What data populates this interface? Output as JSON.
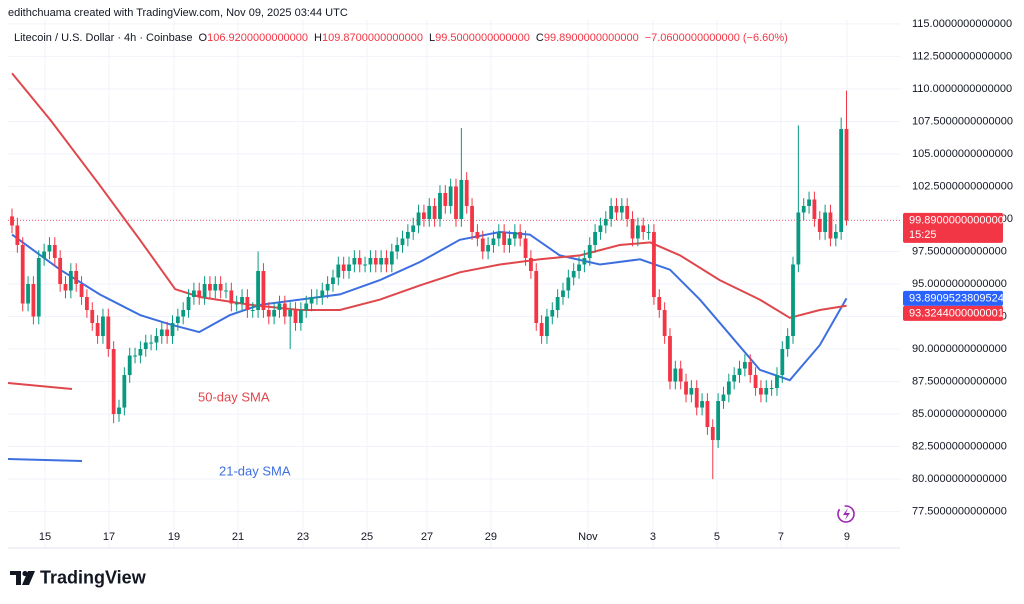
{
  "chart_data": {
    "type": "candlestick",
    "credit": "edithchuama created with TradingView.com, Nov 09, 2025 03:44 UTC",
    "symbol": "Litecoin / U.S. Dollar · 4h · Coinbase",
    "ohlc_header": [
      {
        "key": "O",
        "value": "106.9200000000000"
      },
      {
        "key": "H",
        "value": "109.8700000000000"
      },
      {
        "key": "L",
        "value": "99.5000000000000"
      },
      {
        "key": "C",
        "value": "99.8900000000000"
      },
      {
        "key": "",
        "value": "−7.0600000000000 (−6.60%)"
      }
    ],
    "brand": "TradingView",
    "up_color": "#089981",
    "down_color": "#f23645",
    "grid": true,
    "xlim": [
      -0.75,
      166
    ],
    "ylim": [
      74.7,
      115.3
    ],
    "xticks": [
      {
        "value": 6.17,
        "label": "15"
      },
      {
        "value": 18.13,
        "label": "17"
      },
      {
        "value": 30.28,
        "label": "19"
      },
      {
        "value": 42.24,
        "label": "21"
      },
      {
        "value": 54.39,
        "label": "23"
      },
      {
        "value": 66.36,
        "label": "25"
      },
      {
        "value": 77.57,
        "label": "27"
      },
      {
        "value": 89.53,
        "label": "29"
      },
      {
        "value": 107.66,
        "label": "Nov"
      },
      {
        "value": 119.81,
        "label": "3"
      },
      {
        "value": 131.78,
        "label": "5"
      },
      {
        "value": 143.74,
        "label": "7"
      },
      {
        "value": 156.07,
        "label": "9"
      }
    ],
    "yticks": [
      {
        "value": 77.5,
        "label": "77.5000000000000"
      },
      {
        "value": 80,
        "label": "80.0000000000000"
      },
      {
        "value": 82.5,
        "label": "82.5000000000000"
      },
      {
        "value": 85,
        "label": "85.0000000000000"
      },
      {
        "value": 87.5,
        "label": "87.5000000000000"
      },
      {
        "value": 90,
        "label": "90.0000000000000"
      },
      {
        "value": 92.5,
        "label": "92.5000000000000"
      },
      {
        "value": 95,
        "label": "95.0000000000000"
      },
      {
        "value": 97.5,
        "label": "97.5000000000000"
      },
      {
        "value": 100,
        "label": "100.0000000000000"
      },
      {
        "value": 102.5,
        "label": "102.5000000000000"
      },
      {
        "value": 105,
        "label": "105.0000000000000"
      },
      {
        "value": 107.5,
        "label": "107.5000000000000"
      },
      {
        "value": 110,
        "label": "110.0000000000000"
      },
      {
        "value": 112.5,
        "label": "112.5000000000000"
      },
      {
        "value": 115,
        "label": "115.0000000000000"
      }
    ],
    "open": [
      100.2,
      99.5,
      98,
      93.5,
      95,
      92.5,
      97,
      97.5,
      98,
      97,
      95,
      94.5,
      96,
      95,
      94,
      93,
      92,
      91,
      92.5,
      90,
      85,
      85.5,
      88,
      89.5,
      89.5,
      90,
      90.5,
      90.5,
      91,
      91.5,
      91,
      92,
      92.5,
      93,
      94,
      94.5,
      94,
      95,
      94.5,
      95,
      94.5,
      94.5,
      93.5,
      93.5,
      94,
      93,
      93,
      96,
      93,
      92.5,
      93,
      93.5,
      92.5,
      93,
      92,
      93,
      93.5,
      94,
      94,
      94.5,
      95,
      95.5,
      96.5,
      96,
      96.5,
      97,
      96.5,
      96.5,
      97,
      96.5,
      97,
      96.5,
      97.5,
      98,
      98.5,
      99,
      99.5,
      100.5,
      100,
      101,
      100,
      102,
      101,
      102.5,
      100,
      103,
      101,
      99,
      98.5,
      97.5,
      98,
      98.5,
      99,
      98,
      98.5,
      99,
      98.5,
      97,
      96,
      92,
      91,
      92.5,
      93,
      94,
      94.5,
      95.5,
      96,
      96.5,
      97,
      98,
      99,
      99.5,
      100,
      101,
      100.5,
      101,
      100,
      98.5,
      99.5,
      99,
      99,
      94,
      93,
      91,
      87.5,
      88.5,
      87.5,
      86.5,
      87,
      85.5,
      86,
      84,
      83,
      86,
      86.5,
      87.5,
      88,
      88.5,
      89,
      88,
      87,
      86.5,
      87,
      87,
      88,
      90,
      91,
      96.5,
      100.5,
      101,
      101.5,
      100,
      99,
      100.5,
      98.5,
      99,
      106.92
    ],
    "high": [
      100.8,
      100.1,
      98.6,
      95.6,
      95.6,
      97.6,
      98.1,
      98.6,
      98.6,
      97.6,
      95.6,
      96.6,
      96.6,
      95.6,
      94.6,
      93.6,
      92.6,
      93.1,
      93.1,
      90.6,
      86.1,
      88.6,
      90.1,
      90.1,
      90.6,
      91.1,
      91.1,
      91.6,
      92.1,
      92.1,
      92.6,
      93.1,
      93.6,
      94.6,
      95.1,
      95.1,
      95.6,
      95.6,
      95.6,
      95.6,
      95.1,
      95.1,
      94.1,
      94.6,
      94.6,
      93.6,
      97.5,
      96.6,
      93.6,
      93.6,
      94.1,
      94.1,
      93.6,
      93.6,
      93.6,
      94.1,
      94.6,
      94.6,
      95.1,
      95.6,
      96.1,
      97.1,
      97.1,
      97.1,
      97.6,
      97.6,
      97.1,
      97.6,
      97.6,
      97.6,
      97.6,
      98.1,
      98.6,
      99.1,
      99.6,
      100.1,
      101.1,
      101.1,
      101.6,
      101.6,
      102.6,
      102.6,
      103.1,
      103.1,
      107,
      103.6,
      101.6,
      99.6,
      99.1,
      98.6,
      99.1,
      99.6,
      99.6,
      99.1,
      99.6,
      99.6,
      99.1,
      97.6,
      96.6,
      92.6,
      93.1,
      93.6,
      94.6,
      95.1,
      96.1,
      96.6,
      97.1,
      97.6,
      98.6,
      99.6,
      100.1,
      100.6,
      101.6,
      101.6,
      101.6,
      101.6,
      100.6,
      100.1,
      100.1,
      99.6,
      99.6,
      94.6,
      93.6,
      91.6,
      89.1,
      89.1,
      88.1,
      87.6,
      87.6,
      86.6,
      86.6,
      84.6,
      86.6,
      87.1,
      88.1,
      88.6,
      89.1,
      89.6,
      89.6,
      88.6,
      87.6,
      87.6,
      87.6,
      88.6,
      90.6,
      91.6,
      97.1,
      107.2,
      101.6,
      102.1,
      102.1,
      100.6,
      101.1,
      101.1,
      99.6,
      107.8,
      109.87
    ],
    "low": [
      98.9,
      97.4,
      92.9,
      92.9,
      91.9,
      91.9,
      96.4,
      96.9,
      96.4,
      94.4,
      93.9,
      93.9,
      94.4,
      93.4,
      92.4,
      91.4,
      90.4,
      90.4,
      89.4,
      84.3,
      84.4,
      84.9,
      87.4,
      88.9,
      88.9,
      89.4,
      89.9,
      89.9,
      90.4,
      90.4,
      90.4,
      91.4,
      91.9,
      92.4,
      93.4,
      93.4,
      93.4,
      93.9,
      93.9,
      93.9,
      93.9,
      92.9,
      92.9,
      92.9,
      92.4,
      92.4,
      92.4,
      92.4,
      91.9,
      91.9,
      92.4,
      91.9,
      90,
      91.4,
      91.4,
      92.4,
      92.9,
      93.4,
      93.4,
      93.9,
      94.4,
      94.9,
      95.4,
      95.4,
      95.9,
      95.9,
      95.9,
      95.9,
      95.9,
      95.9,
      95.9,
      95.9,
      96.9,
      97.4,
      97.9,
      98.4,
      98.9,
      99.4,
      99.4,
      99.4,
      99.4,
      100.4,
      100.4,
      99.4,
      99.4,
      100.4,
      98.4,
      97.9,
      96.9,
      96.9,
      97.4,
      97.9,
      97.4,
      97.4,
      97.9,
      97.9,
      96.4,
      95.4,
      91.4,
      90.4,
      90.4,
      91.9,
      92.4,
      93.4,
      93.9,
      94.9,
      95.4,
      95.9,
      96.4,
      97.4,
      98.4,
      98.9,
      99.4,
      99.9,
      99.9,
      99.4,
      97.9,
      97.9,
      98.4,
      98.4,
      93.4,
      92.4,
      90.4,
      86.9,
      86.9,
      86.9,
      85.9,
      85.9,
      84.9,
      84.9,
      83.4,
      80,
      82.4,
      85.4,
      85.9,
      86.9,
      87.4,
      87.9,
      87.4,
      86.4,
      85.9,
      85.9,
      86.4,
      86.4,
      87.4,
      89.4,
      90.4,
      95.9,
      99.9,
      100.4,
      99.4,
      98.4,
      98.4,
      97.9,
      97.9,
      98.4,
      99.5
    ],
    "close": [
      99.5,
      98,
      93.5,
      95,
      92.5,
      97,
      97.5,
      98,
      97,
      95,
      94.5,
      96,
      95,
      94,
      93,
      92,
      91,
      92.5,
      90,
      85,
      85.5,
      88,
      89.5,
      89.5,
      90,
      90.5,
      90.5,
      91,
      91.5,
      91,
      92,
      92.5,
      93,
      94,
      94.5,
      94,
      95,
      94.5,
      95,
      94.5,
      94.5,
      93.5,
      93.5,
      94,
      93,
      93,
      96,
      93,
      92.5,
      93,
      93.5,
      92.5,
      93,
      92,
      93,
      93.5,
      94,
      94,
      94.5,
      95,
      95.5,
      96.5,
      96,
      96.5,
      97,
      96.5,
      96.5,
      97,
      96.5,
      97,
      96.5,
      97.5,
      98,
      98.5,
      99,
      99.5,
      100.5,
      100,
      101,
      100,
      102,
      101,
      102.5,
      100,
      103,
      101,
      99,
      98.5,
      97.5,
      98,
      98.5,
      99,
      98,
      98.5,
      99,
      98.5,
      97,
      96,
      92,
      91,
      92.5,
      93,
      94,
      94.5,
      95.5,
      96,
      96.5,
      97,
      98,
      99,
      99.5,
      100,
      101,
      100.5,
      101,
      100,
      98.5,
      99.5,
      99,
      99,
      94,
      93,
      91,
      87.5,
      88.5,
      87.5,
      86.5,
      87,
      85.5,
      86,
      84,
      83,
      86,
      86.5,
      87.5,
      88,
      88.5,
      89,
      88,
      87,
      86.5,
      87,
      87,
      88,
      90,
      91,
      96.5,
      100.5,
      101,
      101.5,
      100,
      99,
      100.5,
      98.5,
      99,
      106.92,
      99.89
    ],
    "series": [
      {
        "name": "21-day SMA",
        "color": "#3d6fe0",
        "x": [
          0,
          9,
          16.4,
          20.2,
          24,
          29.5,
          35,
          40.7,
          46.4,
          53.8,
          61.3,
          68.8,
          76.3,
          83.7,
          91.2,
          96.8,
          102.4,
          109.9,
          117.4,
          123,
          128.6,
          134.2,
          139.8,
          145.4,
          151,
          156
        ],
        "values": [
          98.8,
          96.1,
          94.2,
          93.4,
          92.6,
          91.9,
          91.3,
          92.6,
          93.4,
          93.8,
          94.2,
          95.3,
          96.7,
          98.4,
          99,
          98.8,
          97.2,
          96.5,
          96.9,
          96.1,
          93.8,
          91.1,
          88.4,
          87.6,
          90.3,
          93.89
        ]
      },
      {
        "name": "50-day SMA",
        "color": "#e0474c",
        "x": [
          0,
          7.2,
          16.4,
          23.9,
          30.5,
          35.1,
          44.5,
          53.8,
          61.3,
          68.8,
          76.3,
          83.7,
          91.2,
          98.7,
          106.2,
          113.6,
          119.3,
          124.9,
          132.3,
          139.8,
          145.4,
          151,
          156
        ],
        "values": [
          111.2,
          107.6,
          102.6,
          98.4,
          94.6,
          94,
          93.4,
          93,
          93,
          93.8,
          94.9,
          95.9,
          96.5,
          96.9,
          97.2,
          98,
          98.2,
          97.2,
          95.3,
          93.8,
          92.4,
          93,
          93.32
        ]
      }
    ],
    "price_tags": [
      {
        "value": 99.89,
        "label": "99.8900000000000",
        "timer": "15:25",
        "color": "#f23645"
      },
      {
        "value": 93.8909523809524,
        "label": "93.8909523809524",
        "color": "#2962ff"
      },
      {
        "value": 93.3244000000001,
        "label": "93.3244000000001",
        "color": "#f23645"
      }
    ]
  }
}
